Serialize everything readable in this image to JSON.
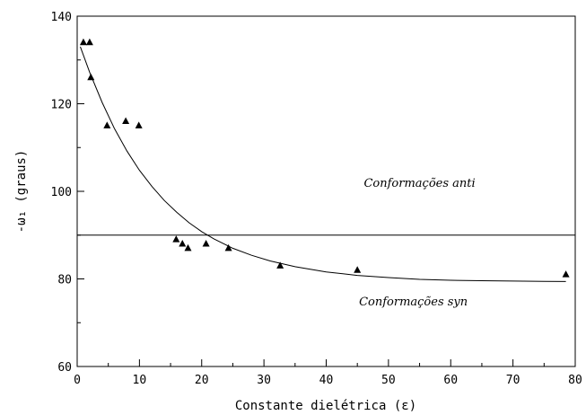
{
  "chart_data": {
    "type": "scatter",
    "xlabel": "Constante dielétrica (ε)",
    "ylabel": "-ω₁ (graus)",
    "xlim": [
      0,
      80
    ],
    "ylim": [
      60,
      140
    ],
    "xticks": [
      0,
      10,
      20,
      30,
      40,
      50,
      60,
      70,
      80
    ],
    "yticks": [
      60,
      80,
      100,
      120,
      140
    ],
    "grid": false,
    "series": [
      {
        "marker": "triangle",
        "color": "#000000",
        "x": [
          1.0,
          2.0,
          2.2,
          4.8,
          7.8,
          9.9,
          15.9,
          16.9,
          17.8,
          20.7,
          24.3,
          32.6,
          45.0,
          78.5
        ],
        "y": [
          134,
          134,
          126,
          115,
          116,
          115,
          89,
          88,
          87,
          88,
          87,
          83,
          82,
          81
        ]
      }
    ],
    "fit_curve": {
      "type": "exponential",
      "x": [
        0.5,
        2,
        4,
        6,
        8,
        10,
        12,
        14,
        16,
        18,
        20,
        22,
        25,
        28,
        31,
        35,
        40,
        45,
        50,
        55,
        60,
        65,
        70,
        75,
        78.5
      ],
      "y": [
        133.0,
        127.2,
        120.3,
        114.3,
        109.2,
        104.8,
        101.1,
        97.9,
        95.2,
        92.8,
        90.8,
        89.1,
        87.0,
        85.4,
        84.1,
        82.8,
        81.6,
        80.8,
        80.3,
        79.9,
        79.7,
        79.6,
        79.5,
        79.45,
        79.4
      ]
    },
    "reference_line": {
      "y": 90
    },
    "annotations": [
      {
        "text": "Conformações anti",
        "x": 55,
        "y": 101
      },
      {
        "text": "Conformações syn",
        "x": 54,
        "y": 74
      }
    ]
  }
}
